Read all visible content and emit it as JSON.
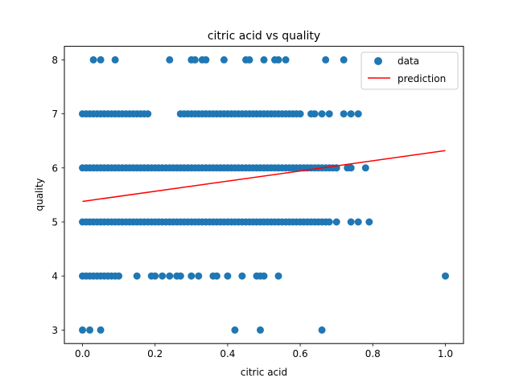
{
  "chart_data": {
    "type": "scatter",
    "title": "citric acid vs quality",
    "xlabel": "citric acid",
    "ylabel": "quality",
    "xlim": [
      -0.05,
      1.05
    ],
    "ylim": [
      2.75,
      8.25
    ],
    "xticks": [
      "0.0",
      "0.2",
      "0.4",
      "0.6",
      "0.8",
      "1.0"
    ],
    "yticks": [
      "3",
      "4",
      "5",
      "6",
      "7",
      "8"
    ],
    "grid": false,
    "legend": {
      "position": "top-right",
      "entries": [
        "data",
        "prediction"
      ]
    },
    "colors": {
      "data": "#1f77b4",
      "prediction": "#ff0000"
    },
    "series": [
      {
        "name": "data",
        "kind": "scatter",
        "groups": [
          {
            "y": 3,
            "x": [
              0.0,
              0.02,
              0.05,
              0.42,
              0.49,
              0.66
            ]
          },
          {
            "y": 4,
            "range": [
              0.0,
              0.1
            ],
            "x": [
              0.15,
              0.19,
              0.2,
              0.22,
              0.24,
              0.26,
              0.27,
              0.3,
              0.32,
              0.36,
              0.37,
              0.4,
              0.44,
              0.48,
              0.49,
              0.5,
              0.54,
              1.0
            ]
          },
          {
            "y": 5,
            "range": [
              0.0,
              0.68
            ],
            "x": [
              0.7,
              0.74,
              0.76,
              0.79
            ]
          },
          {
            "y": 6,
            "range": [
              0.0,
              0.7
            ],
            "x": [
              0.73,
              0.74,
              0.78
            ]
          },
          {
            "y": 7,
            "range": [
              0.0,
              0.18
            ],
            "range2": [
              0.27,
              0.6
            ],
            "x": [
              0.63,
              0.64,
              0.66,
              0.68,
              0.72,
              0.74,
              0.76
            ]
          },
          {
            "y": 8,
            "x": [
              0.03,
              0.05,
              0.09,
              0.24,
              0.3,
              0.31,
              0.33,
              0.34,
              0.39,
              0.45,
              0.46,
              0.5,
              0.53,
              0.54,
              0.56,
              0.67,
              0.72
            ]
          }
        ]
      },
      {
        "name": "prediction",
        "kind": "line",
        "x": [
          0.0,
          1.0
        ],
        "y": [
          5.38,
          6.32
        ]
      }
    ]
  }
}
